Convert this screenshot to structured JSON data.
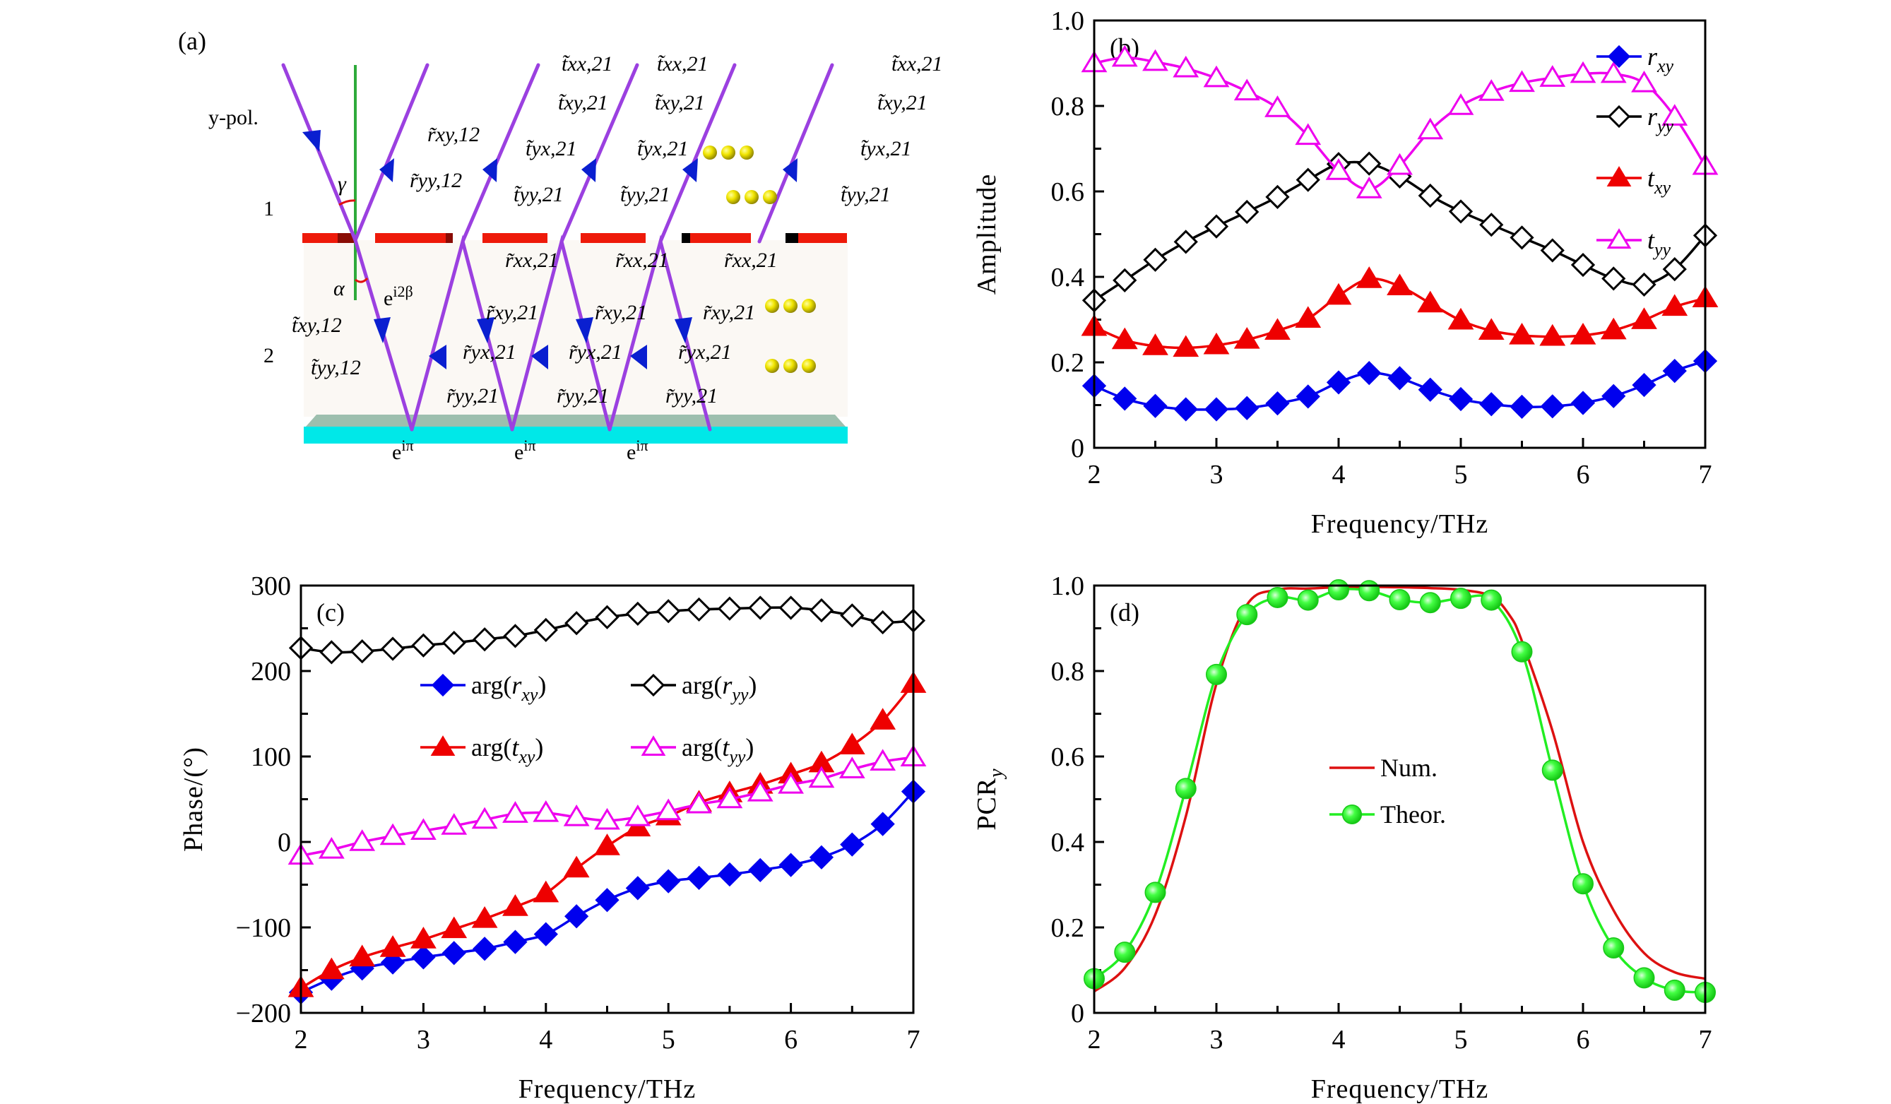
{
  "figure": {
    "panels": [
      "(a)",
      "(b)",
      "(c)",
      "(d)"
    ]
  },
  "diagram": {
    "panel_label": "(a)",
    "incident_label": "y-pol.",
    "region_labels": [
      "1",
      "2"
    ],
    "angle_labels": [
      "γ",
      "α"
    ],
    "phase_labels": {
      "propagation": "e^{i2β}",
      "ground": "e^{iπ}"
    },
    "reflected_labels": [
      "r̃xy,12",
      "r̃yy,12"
    ],
    "transmitted_in_labels": [
      "t̃xy,12",
      "t̃yy,12"
    ],
    "outgoing_labels": [
      "t̃xx,21",
      "t̃xy,21",
      "t̃yx,21",
      "t̃yy,21"
    ],
    "internal_labels": [
      "r̃xx,21",
      "r̃xy,21",
      "r̃yx,21",
      "r̃yy,21"
    ],
    "ellipsis": "•••",
    "colors": {
      "ray": "#9b40e0",
      "arrow": "#0a1fd0",
      "normal": "#2eaa3a",
      "angle_arc": "#e01010",
      "metasurface": "#ee1a0a",
      "spacer": "#fbf8f4",
      "ground_top": "#9dbfae",
      "ground": "#00e8e8",
      "dots": "#e8e000"
    }
  },
  "chart_data": [
    {
      "panel": "(b)",
      "type": "line",
      "title": "",
      "xlabel": "Frequency/THz",
      "ylabel": "Amplitude",
      "xlim": [
        2,
        7
      ],
      "ylim": [
        0,
        1.0
      ],
      "xticks": [
        2,
        3,
        4,
        5,
        6,
        7
      ],
      "xtick_labels": [
        "2",
        "3",
        "4",
        "5",
        "6",
        "7"
      ],
      "yticks": [
        0,
        0.2,
        0.4,
        0.6,
        0.8,
        1.0
      ],
      "ytick_labels": [
        "0",
        "0.2",
        "0.4",
        "0.6",
        "0.8",
        "1.0"
      ],
      "grid": false,
      "legend_position": "top-right",
      "x": [
        2,
        2.25,
        2.5,
        2.75,
        3,
        3.25,
        3.5,
        3.75,
        4,
        4.25,
        4.5,
        4.75,
        5,
        5.25,
        5.5,
        5.75,
        6,
        6.25,
        6.5,
        6.75,
        7
      ],
      "series": [
        {
          "name": "r_xy",
          "label_base": "r",
          "label_sub": "xy",
          "color": "#0000ee",
          "marker": "diamond-filled",
          "values": [
            0.145,
            0.115,
            0.098,
            0.09,
            0.09,
            0.093,
            0.104,
            0.12,
            0.153,
            0.175,
            0.163,
            0.136,
            0.114,
            0.102,
            0.096,
            0.097,
            0.105,
            0.121,
            0.147,
            0.18,
            0.203
          ]
        },
        {
          "name": "r_yy",
          "label_base": "r",
          "label_sub": "yy",
          "color": "#000000",
          "marker": "diamond-open",
          "values": [
            0.345,
            0.392,
            0.44,
            0.482,
            0.518,
            0.552,
            0.587,
            0.627,
            0.664,
            0.665,
            0.635,
            0.59,
            0.553,
            0.522,
            0.492,
            0.462,
            0.428,
            0.396,
            0.382,
            0.418,
            0.497
          ]
        },
        {
          "name": "t_xy",
          "label_base": "t",
          "label_sub": "xy",
          "color": "#ee0000",
          "marker": "triangle-filled",
          "values": [
            0.283,
            0.252,
            0.238,
            0.234,
            0.24,
            0.253,
            0.274,
            0.302,
            0.356,
            0.395,
            0.378,
            0.338,
            0.298,
            0.274,
            0.263,
            0.26,
            0.263,
            0.275,
            0.299,
            0.33,
            0.35
          ]
        },
        {
          "name": "t_yy",
          "label_base": "t",
          "label_sub": "yy",
          "color": "#ee00ee",
          "marker": "triangle-open",
          "values": [
            0.9,
            0.913,
            0.903,
            0.888,
            0.865,
            0.834,
            0.795,
            0.73,
            0.648,
            0.605,
            0.66,
            0.743,
            0.8,
            0.833,
            0.854,
            0.866,
            0.875,
            0.875,
            0.853,
            0.775,
            0.66
          ]
        }
      ]
    },
    {
      "panel": "(c)",
      "type": "line",
      "title": "",
      "xlabel": "Frequency/THz",
      "ylabel": "Phase/(°)",
      "xlim": [
        2,
        7
      ],
      "ylim": [
        -200,
        300
      ],
      "xticks": [
        2,
        3,
        4,
        5,
        6,
        7
      ],
      "xtick_labels": [
        "2",
        "3",
        "4",
        "5",
        "6",
        "7"
      ],
      "yticks": [
        -200,
        -100,
        0,
        100,
        200,
        300
      ],
      "ytick_labels": [
        "−200",
        "−100",
        "0",
        "100",
        "200",
        "300"
      ],
      "grid": false,
      "legend_position": "center-top",
      "x": [
        2,
        2.25,
        2.5,
        2.75,
        3,
        3.25,
        3.5,
        3.75,
        4,
        4.25,
        4.5,
        4.75,
        5,
        5.25,
        5.5,
        5.75,
        6,
        6.25,
        6.5,
        6.75,
        7
      ],
      "series": [
        {
          "name": "arg(r_xy)",
          "label_base": "r",
          "label_sub": "xy",
          "color": "#0000ee",
          "marker": "diamond-filled",
          "values": [
            -176,
            -160,
            -148,
            -141,
            -135,
            -130,
            -125,
            -117,
            -108,
            -87,
            -68,
            -54,
            -46,
            -42,
            -38,
            -33,
            -27,
            -18,
            -3,
            21,
            59
          ]
        },
        {
          "name": "arg(r_yy)",
          "label_base": "r",
          "label_sub": "yy",
          "color": "#000000",
          "marker": "diamond-open",
          "values": [
            227,
            222,
            223,
            226,
            230,
            233,
            237,
            241,
            248,
            256,
            263,
            267,
            270,
            272,
            273,
            274,
            274,
            271,
            265,
            257,
            259
          ]
        },
        {
          "name": "arg(t_xy)",
          "label_base": "t",
          "label_sub": "xy",
          "color": "#ee0000",
          "marker": "triangle-filled",
          "values": [
            -171,
            -150,
            -135,
            -124,
            -114,
            -102,
            -90,
            -76,
            -60,
            -31,
            -5,
            17,
            30,
            46,
            57,
            67,
            79,
            92,
            113,
            142,
            185
          ]
        },
        {
          "name": "arg(t_yy)",
          "label_base": "t",
          "label_sub": "yy",
          "color": "#ee00ee",
          "marker": "triangle-open",
          "values": [
            -16,
            -9,
            0,
            7,
            13,
            19,
            26,
            33,
            34,
            29,
            25,
            29,
            36,
            44,
            50,
            58,
            67,
            74,
            85,
            94,
            99
          ]
        }
      ]
    },
    {
      "panel": "(d)",
      "type": "line",
      "title": "",
      "xlabel": "Frequency/THz",
      "ylabel": "PCR_y",
      "xlim": [
        2,
        7
      ],
      "ylim": [
        0,
        1.0
      ],
      "xticks": [
        2,
        3,
        4,
        5,
        6,
        7
      ],
      "xtick_labels": [
        "2",
        "3",
        "4",
        "5",
        "6",
        "7"
      ],
      "yticks": [
        0,
        0.2,
        0.4,
        0.6,
        0.8,
        1.0
      ],
      "ytick_labels": [
        "0",
        "0.2",
        "0.4",
        "0.6",
        "0.8",
        "1.0"
      ],
      "grid": false,
      "legend_position": "center",
      "series": [
        {
          "name": "Num.",
          "color": "#dd1111",
          "marker": "none",
          "x": [
            2,
            2.25,
            2.5,
            2.75,
            3,
            3.25,
            3.5,
            3.75,
            4,
            4.25,
            4.5,
            4.75,
            5,
            5.25,
            5.4,
            5.5,
            5.75,
            6,
            6.25,
            6.5,
            6.75,
            7
          ],
          "values": [
            0.05,
            0.105,
            0.23,
            0.46,
            0.77,
            0.955,
            0.99,
            0.993,
            0.996,
            0.997,
            0.996,
            0.994,
            0.99,
            0.975,
            0.93,
            0.87,
            0.66,
            0.4,
            0.24,
            0.14,
            0.095,
            0.08
          ]
        },
        {
          "name": "Theor.",
          "color": "#22ee22",
          "marker": "circle-filled",
          "x": [
            2,
            2.25,
            2.5,
            2.75,
            3,
            3.25,
            3.5,
            3.75,
            4,
            4.25,
            4.5,
            4.75,
            5,
            5.25,
            5.5,
            5.75,
            6,
            6.25,
            6.5,
            6.75,
            7
          ],
          "values": [
            0.08,
            0.142,
            0.282,
            0.525,
            0.792,
            0.932,
            0.972,
            0.966,
            0.99,
            0.988,
            0.967,
            0.96,
            0.97,
            0.966,
            0.845,
            0.568,
            0.302,
            0.152,
            0.082,
            0.053,
            0.048
          ]
        }
      ]
    }
  ]
}
